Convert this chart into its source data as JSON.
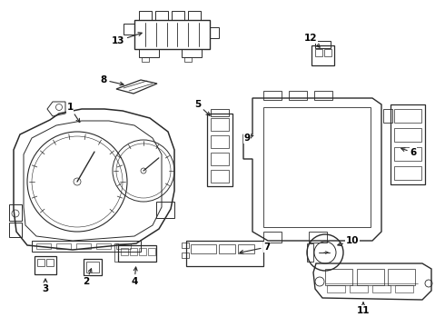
{
  "bg_color": "#ffffff",
  "line_color": "#2a2a2a",
  "label_color": "#000000",
  "figsize": [
    4.9,
    3.6
  ],
  "dpi": 100
}
